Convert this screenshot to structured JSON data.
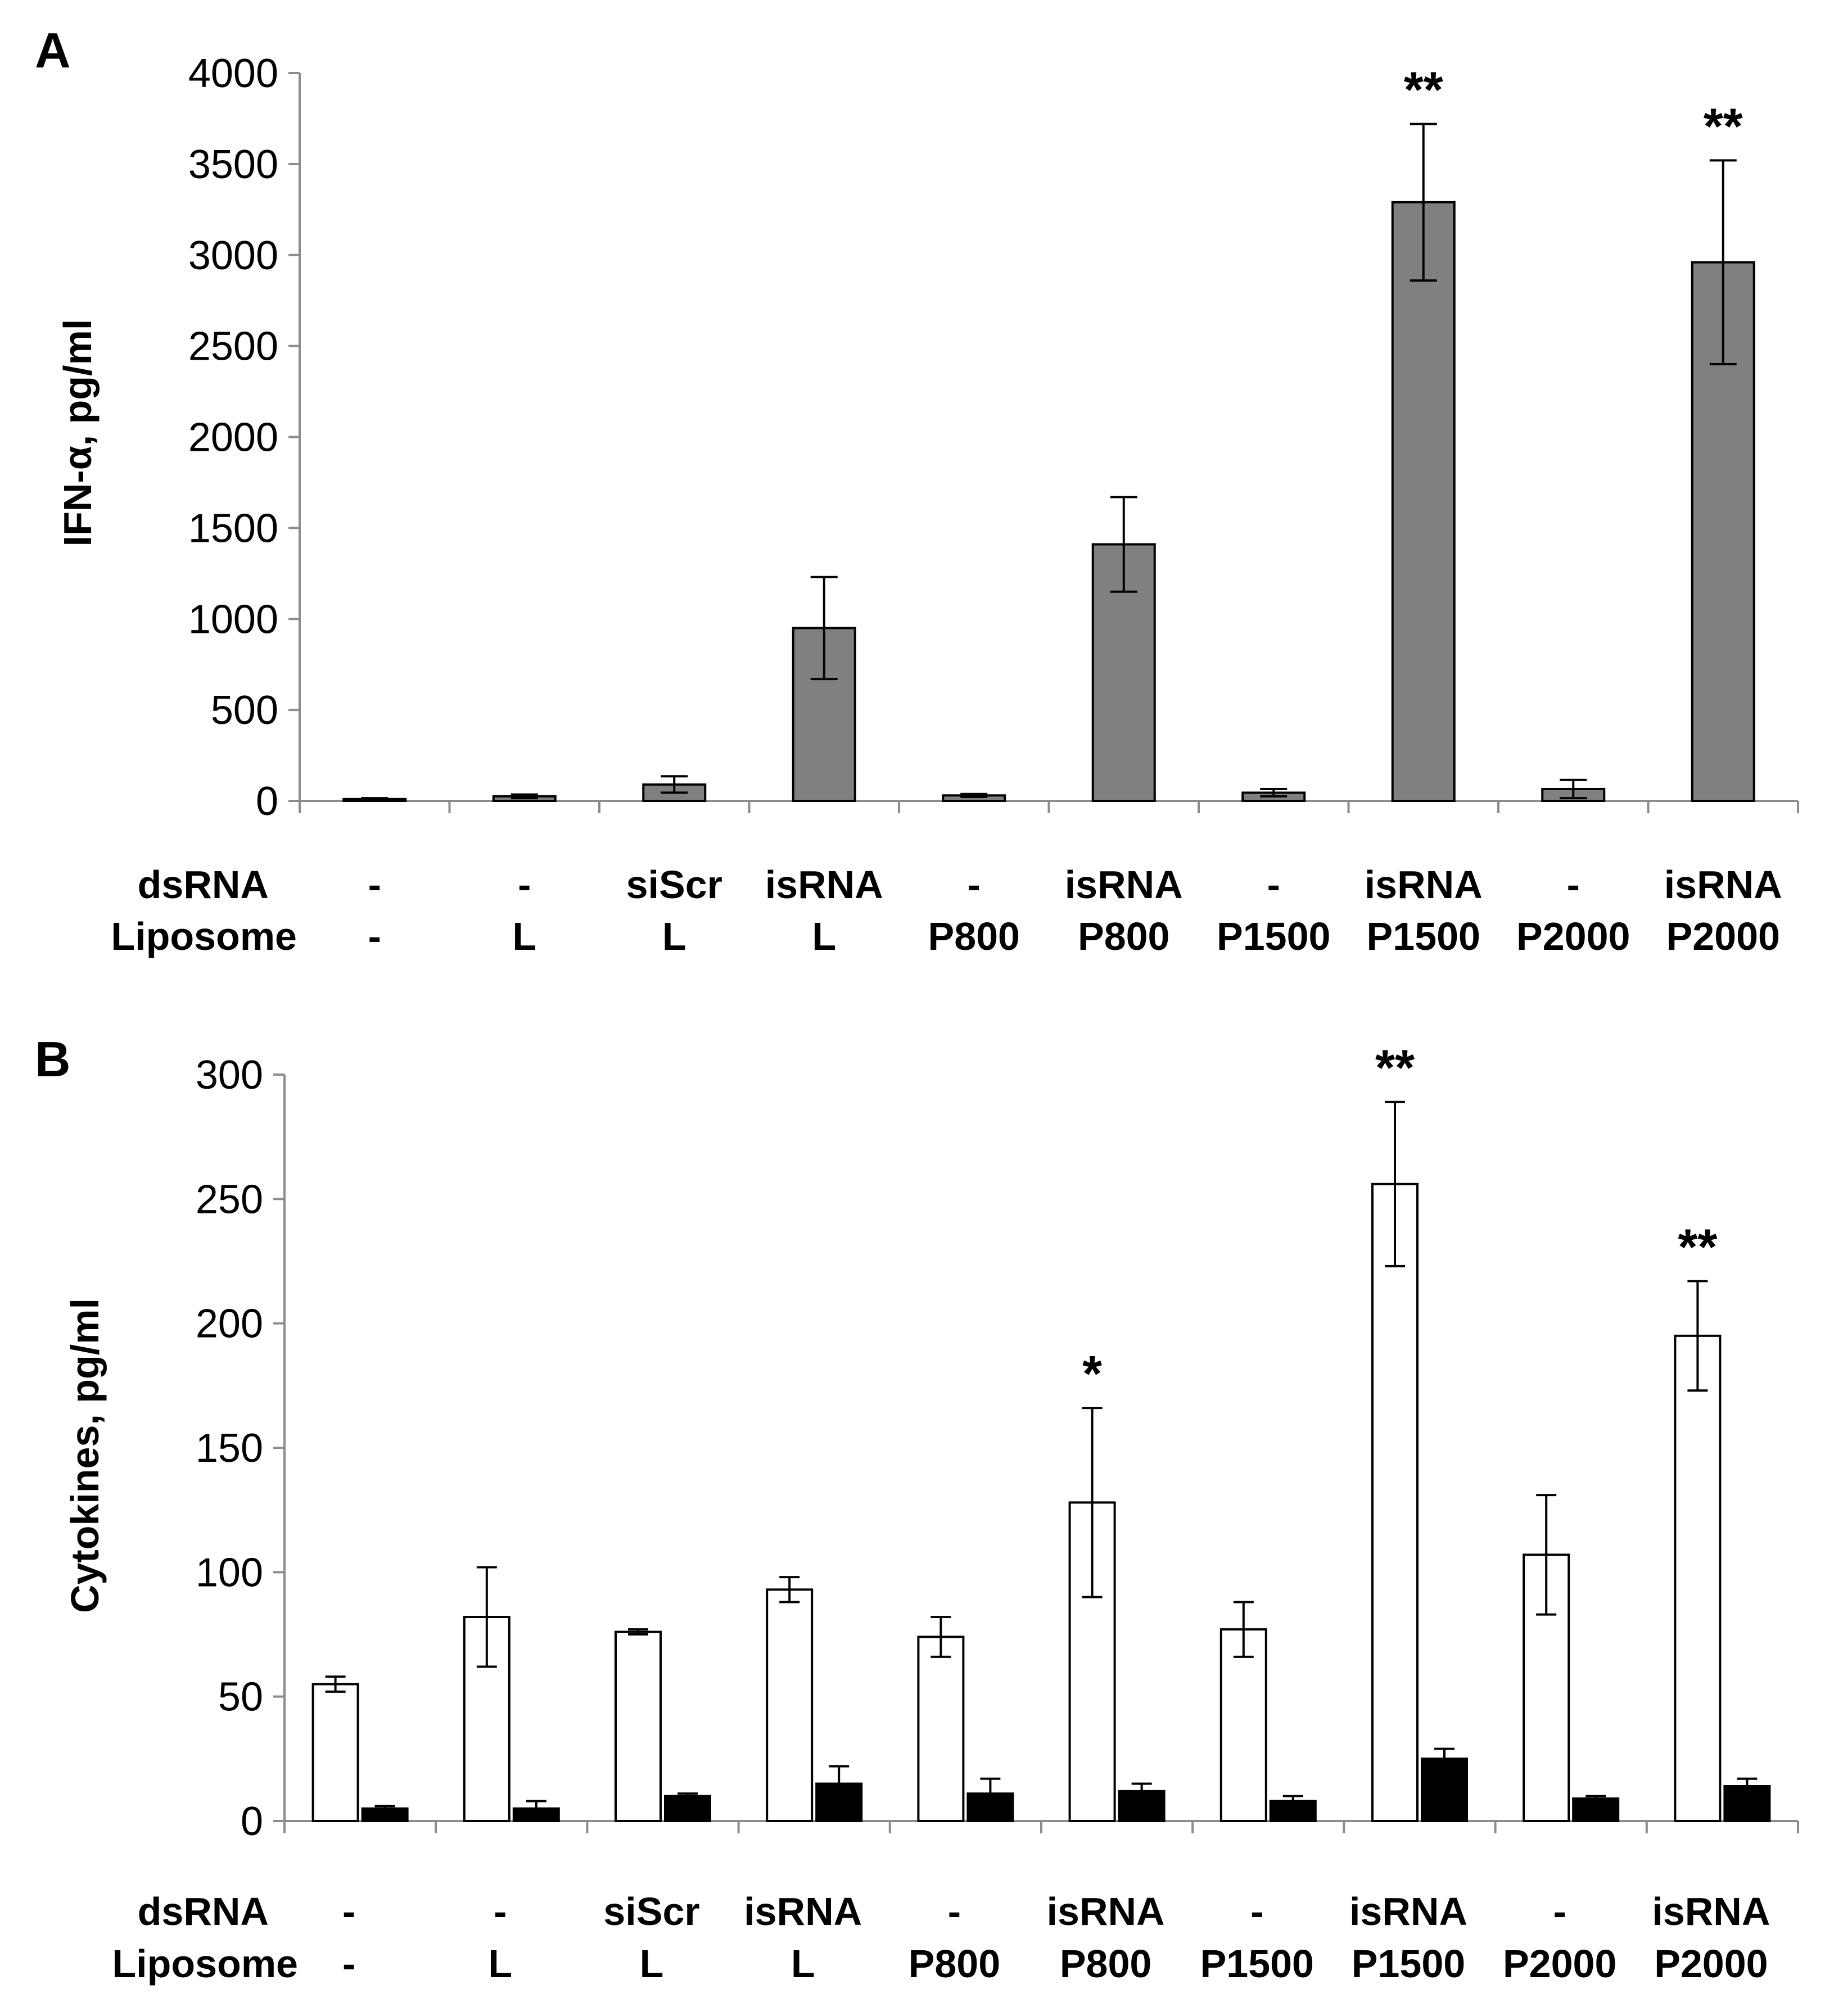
{
  "chart_data": [
    {
      "panel": "A",
      "type": "bar",
      "ylabel": "IFN-α, pg/ml",
      "ylim": [
        0,
        4000
      ],
      "yticks": [
        "0",
        "500",
        "1000",
        "1500",
        "2000",
        "2500",
        "3000",
        "3500",
        "4000"
      ],
      "ytick_values": [
        0,
        500,
        1000,
        1500,
        2000,
        2500,
        3000,
        3500,
        4000
      ],
      "row_labels": [
        "dsRNA",
        "Liposome"
      ],
      "categories": [
        {
          "dsRNA": "-",
          "liposome": "-"
        },
        {
          "dsRNA": "-",
          "liposome": "L"
        },
        {
          "dsRNA": "siScr",
          "liposome": "L"
        },
        {
          "dsRNA": "isRNA",
          "liposome": "L"
        },
        {
          "dsRNA": "-",
          "liposome": "P800"
        },
        {
          "dsRNA": "isRNA",
          "liposome": "P800"
        },
        {
          "dsRNA": "-",
          "liposome": "P1500"
        },
        {
          "dsRNA": "isRNA",
          "liposome": "P1500"
        },
        {
          "dsRNA": "-",
          "liposome": "P2000"
        },
        {
          "dsRNA": "isRNA",
          "liposome": "P2000"
        }
      ],
      "series": [
        {
          "name": "IFN-α",
          "color": "#808080",
          "values": [
            10,
            25,
            90,
            950,
            30,
            1410,
            45,
            3290,
            65,
            2960
          ],
          "errors": [
            5,
            10,
            45,
            280,
            8,
            260,
            20,
            430,
            50,
            560
          ]
        }
      ],
      "annotations": [
        "",
        "",
        "",
        "",
        "",
        "",
        "",
        "**",
        "",
        "**"
      ]
    },
    {
      "panel": "B",
      "type": "bar",
      "ylabel": "Cytokines, pg/ml",
      "ylim": [
        0,
        300
      ],
      "yticks": [
        "0",
        "50",
        "100",
        "150",
        "200",
        "250",
        "300"
      ],
      "ytick_values": [
        0,
        50,
        100,
        150,
        200,
        250,
        300
      ],
      "row_labels": [
        "dsRNA",
        "Liposome"
      ],
      "categories": [
        {
          "dsRNA": "-",
          "liposome": "-"
        },
        {
          "dsRNA": "-",
          "liposome": "L"
        },
        {
          "dsRNA": "siScr",
          "liposome": "L"
        },
        {
          "dsRNA": "isRNA",
          "liposome": "L"
        },
        {
          "dsRNA": "-",
          "liposome": "P800"
        },
        {
          "dsRNA": "isRNA",
          "liposome": "P800"
        },
        {
          "dsRNA": "-",
          "liposome": "P1500"
        },
        {
          "dsRNA": "isRNA",
          "liposome": "P1500"
        },
        {
          "dsRNA": "-",
          "liposome": "P2000"
        },
        {
          "dsRNA": "isRNA",
          "liposome": "P2000"
        }
      ],
      "series": [
        {
          "name": "white",
          "color": "#ffffff",
          "values": [
            55,
            82,
            76,
            93,
            74,
            128,
            77,
            256,
            107,
            195
          ],
          "errors": [
            3,
            20,
            1,
            5,
            8,
            38,
            11,
            33,
            24,
            22
          ]
        },
        {
          "name": "black",
          "color": "#000000",
          "values": [
            5,
            5,
            10,
            15,
            11,
            12,
            8,
            25,
            9,
            14
          ],
          "errors": [
            1,
            3,
            1,
            7,
            6,
            3,
            2,
            4,
            1,
            3
          ]
        }
      ],
      "annotations": [
        "",
        "",
        "",
        "",
        "",
        "*",
        "",
        "**",
        "",
        "**"
      ]
    }
  ]
}
